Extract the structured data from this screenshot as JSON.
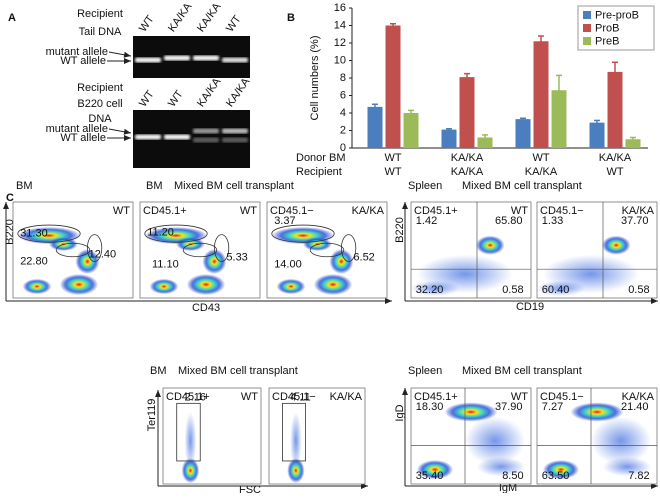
{
  "panel_a": {
    "label": "A",
    "gel1": {
      "title": [
        "Recipient",
        "Tail DNA"
      ],
      "lanes": [
        "WT",
        "KA/KA",
        "KA/KA",
        "WT"
      ],
      "bands": [
        "mutant allele",
        "WT allele"
      ]
    },
    "gel2": {
      "title": [
        "Recipient",
        "B220 cell",
        "DNA"
      ],
      "lanes": [
        "WT",
        "WT",
        "KA/KA",
        "KA/KA"
      ],
      "bands": [
        "mutant allele",
        "WT allele"
      ]
    }
  },
  "chart_data": {
    "type": "bar",
    "label": "B",
    "y_label": "Cell numbers (%)",
    "category_rows": [
      "Donor BM",
      "Recipient"
    ],
    "categories": [
      "WT",
      "KA/KA",
      "WT",
      "KA/KA"
    ],
    "recipient_labels": [
      "WT",
      "KA/KA",
      "KA/KA",
      "WT"
    ],
    "series": [
      {
        "name": "Pre-proB",
        "color": "#4a7ebf",
        "values": [
          4.7,
          2.1,
          3.3,
          2.9
        ],
        "errors": [
          0.3,
          0.1,
          0.1,
          0.25
        ]
      },
      {
        "name": "ProB",
        "color": "#c0504d",
        "values": [
          14.0,
          8.1,
          12.2,
          8.7
        ],
        "errors": [
          0.2,
          0.4,
          0.6,
          1.1
        ]
      },
      {
        "name": "PreB",
        "color": "#9bbb59",
        "values": [
          4.0,
          1.2,
          6.6,
          1.0
        ],
        "errors": [
          0.3,
          0.3,
          1.7,
          0.2
        ]
      }
    ],
    "ylim": [
      0,
      16
    ],
    "yticks": [
      0,
      2,
      4,
      6,
      8,
      10,
      12,
      14,
      16
    ],
    "legend": "top-right"
  },
  "panel_c": {
    "label": "C",
    "groups": [
      {
        "title": "BM"
      },
      {
        "title": "BM",
        "subtitle": "Mixed BM cell transplant"
      },
      {
        "title": "Spleen",
        "subtitle": "Mixed BM cell transplant"
      },
      {
        "title": "BM",
        "subtitle": "Mixed BM cell transplant"
      },
      {
        "title": "Spleen",
        "subtitle": "Mixed BM cell transplant"
      }
    ],
    "axes": [
      {
        "y": "B220",
        "x": "CD43"
      },
      {
        "y": "B220",
        "x": "CD19"
      },
      {
        "y": "Ter119",
        "x": "FSC"
      },
      {
        "y": "IgD",
        "x": "IgM"
      }
    ],
    "plots": [
      {
        "genotype": "WT",
        "gates": [
          "31.30",
          "22.80",
          "12.40"
        ]
      },
      {
        "sample": "CD45.1+",
        "genotype": "WT",
        "gates": [
          "11.20",
          "11.10",
          "5.33"
        ]
      },
      {
        "sample": "CD45.1−",
        "genotype": "KA/KA",
        "gates": [
          "3.37",
          "14.00",
          "6.52"
        ]
      },
      {
        "sample": "CD45.1+",
        "genotype": "WT",
        "gates": [
          "1.42",
          "65.80",
          "32.20",
          "0.58"
        ]
      },
      {
        "sample": "CD45.1−",
        "genotype": "KA/KA",
        "gates": [
          "1.33",
          "37.70",
          "60.40",
          "0.58"
        ]
      },
      {
        "sample": "CD45.1+",
        "genotype": "WT",
        "gates": [
          "2.16"
        ]
      },
      {
        "sample": "CD45.1−",
        "genotype": "KA/KA",
        "gates": [
          "4.11"
        ]
      },
      {
        "sample": "CD45.1+",
        "genotype": "WT",
        "gates": [
          "18.30",
          "37.90",
          "35.40",
          "8.50"
        ]
      },
      {
        "sample": "CD45.1−",
        "genotype": "KA/KA",
        "gates": [
          "7.27",
          "21.40",
          "63.50",
          "7.82"
        ]
      }
    ]
  }
}
